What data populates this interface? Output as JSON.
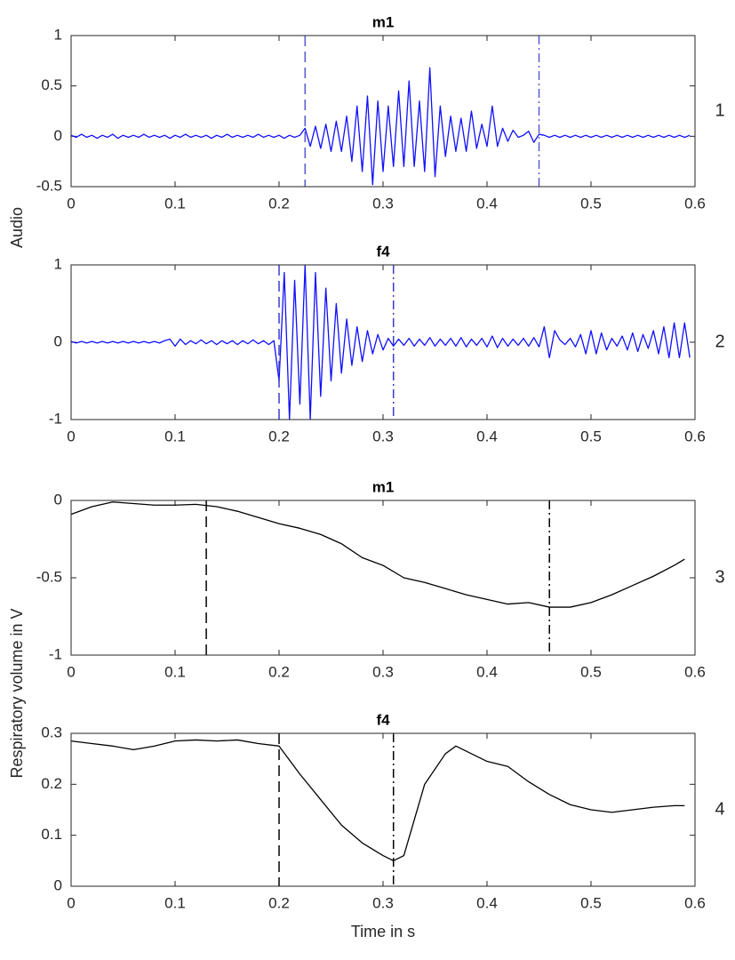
{
  "chart_data": [
    {
      "type": "line",
      "title": "m1",
      "ylabel": "Audio",
      "label": "1",
      "x": [
        0,
        0.005,
        0.01,
        0.015,
        0.02,
        0.025,
        0.03,
        0.035,
        0.04,
        0.045,
        0.05,
        0.055,
        0.06,
        0.065,
        0.07,
        0.075,
        0.08,
        0.085,
        0.09,
        0.095,
        0.1,
        0.105,
        0.11,
        0.115,
        0.12,
        0.125,
        0.13,
        0.135,
        0.14,
        0.145,
        0.15,
        0.155,
        0.16,
        0.165,
        0.17,
        0.175,
        0.18,
        0.185,
        0.19,
        0.195,
        0.2,
        0.205,
        0.21,
        0.215,
        0.22,
        0.225,
        0.23,
        0.235,
        0.24,
        0.245,
        0.25,
        0.255,
        0.26,
        0.265,
        0.27,
        0.275,
        0.28,
        0.285,
        0.29,
        0.295,
        0.3,
        0.305,
        0.31,
        0.315,
        0.32,
        0.325,
        0.33,
        0.335,
        0.34,
        0.345,
        0.35,
        0.355,
        0.36,
        0.365,
        0.37,
        0.375,
        0.38,
        0.385,
        0.39,
        0.395,
        0.4,
        0.405,
        0.41,
        0.415,
        0.42,
        0.425,
        0.43,
        0.435,
        0.44,
        0.445,
        0.45,
        0.455,
        0.46,
        0.465,
        0.47,
        0.475,
        0.48,
        0.485,
        0.49,
        0.495,
        0.5,
        0.505,
        0.51,
        0.515,
        0.52,
        0.525,
        0.53,
        0.535,
        0.54,
        0.545,
        0.55,
        0.555,
        0.56,
        0.565,
        0.57,
        0.575,
        0.58,
        0.585,
        0.59,
        0.595
      ],
      "values": [
        0.01,
        -0.01,
        0.02,
        -0.01,
        0.01,
        -0.02,
        0.01,
        -0.01,
        0.02,
        -0.02,
        0.01,
        -0.01,
        0.01,
        -0.01,
        0.02,
        -0.01,
        0.01,
        -0.01,
        0.01,
        -0.02,
        0.01,
        -0.01,
        0.02,
        -0.01,
        0.01,
        -0.01,
        0.01,
        -0.02,
        0.01,
        -0.01,
        0.02,
        -0.01,
        0.01,
        -0.01,
        0.01,
        -0.01,
        0.02,
        -0.01,
        0.01,
        -0.01,
        0.01,
        -0.02,
        0.01,
        -0.01,
        0.01,
        0.08,
        -0.1,
        0.1,
        -0.12,
        0.12,
        -0.15,
        0.15,
        -0.15,
        0.2,
        -0.25,
        0.3,
        -0.35,
        0.4,
        -0.48,
        0.35,
        -0.35,
        0.3,
        -0.3,
        0.45,
        -0.3,
        0.55,
        -0.3,
        0.35,
        -0.35,
        0.68,
        -0.4,
        0.3,
        -0.2,
        0.2,
        -0.15,
        0.18,
        -0.15,
        0.25,
        -0.12,
        0.12,
        -0.1,
        0.3,
        -0.1,
        0.08,
        -0.05,
        0.06,
        -0.01,
        0.01,
        0.05,
        -0.06,
        0.02,
        0.01,
        -0.01,
        0.01,
        -0.01,
        0.01,
        -0.01,
        0.01,
        -0.01,
        0.01,
        -0.01,
        0.01,
        -0.01,
        0.01,
        -0.01,
        0.01,
        -0.01,
        0.01,
        -0.01,
        0.01,
        -0.01,
        0.01,
        -0.01,
        0.01,
        -0.01,
        0.01,
        -0.01,
        0.01,
        -0.01,
        0.01
      ],
      "color": "#1010ff",
      "xlim": [
        0,
        0.6
      ],
      "xticks": [
        0,
        0.1,
        0.2,
        0.3,
        0.4,
        0.5,
        0.6
      ],
      "ylim": [
        -0.5,
        1
      ],
      "yticks": [
        -0.5,
        0,
        0.5,
        1
      ],
      "markers": [
        {
          "x": 0.225,
          "style": "dashed",
          "color": "#5a5ad6"
        },
        {
          "x": 0.45,
          "style": "dashdot",
          "color": "#5a5ad6"
        }
      ]
    },
    {
      "type": "line",
      "title": "f4",
      "label": "2",
      "x": [
        0,
        0.005,
        0.01,
        0.015,
        0.02,
        0.025,
        0.03,
        0.035,
        0.04,
        0.045,
        0.05,
        0.055,
        0.06,
        0.065,
        0.07,
        0.075,
        0.08,
        0.085,
        0.09,
        0.095,
        0.1,
        0.105,
        0.11,
        0.115,
        0.12,
        0.125,
        0.13,
        0.135,
        0.14,
        0.145,
        0.15,
        0.155,
        0.16,
        0.165,
        0.17,
        0.175,
        0.18,
        0.185,
        0.19,
        0.195,
        0.2,
        0.205,
        0.21,
        0.215,
        0.22,
        0.225,
        0.23,
        0.235,
        0.24,
        0.245,
        0.25,
        0.255,
        0.26,
        0.265,
        0.27,
        0.275,
        0.28,
        0.285,
        0.29,
        0.295,
        0.3,
        0.305,
        0.31,
        0.315,
        0.32,
        0.325,
        0.33,
        0.335,
        0.34,
        0.345,
        0.35,
        0.355,
        0.36,
        0.365,
        0.37,
        0.375,
        0.38,
        0.385,
        0.39,
        0.395,
        0.4,
        0.405,
        0.41,
        0.415,
        0.42,
        0.425,
        0.43,
        0.435,
        0.44,
        0.445,
        0.45,
        0.455,
        0.46,
        0.465,
        0.47,
        0.475,
        0.48,
        0.485,
        0.49,
        0.495,
        0.5,
        0.505,
        0.51,
        0.515,
        0.52,
        0.525,
        0.53,
        0.535,
        0.54,
        0.545,
        0.55,
        0.555,
        0.56,
        0.565,
        0.57,
        0.575,
        0.58,
        0.585,
        0.59,
        0.595
      ],
      "values": [
        0.01,
        -0.01,
        0.01,
        -0.01,
        0.01,
        -0.01,
        0.01,
        -0.01,
        0.01,
        -0.01,
        0.01,
        -0.01,
        0.01,
        -0.01,
        0.01,
        -0.01,
        0.01,
        -0.01,
        0.02,
        0.04,
        -0.05,
        0.04,
        -0.03,
        0.02,
        -0.02,
        0.03,
        -0.02,
        0.02,
        -0.03,
        0.02,
        -0.02,
        0.02,
        -0.03,
        0.02,
        -0.02,
        0.03,
        -0.02,
        0.02,
        -0.03,
        0.02,
        -0.5,
        0.9,
        -1,
        0.8,
        -0.8,
        1,
        -1,
        0.9,
        -0.7,
        0.7,
        -0.5,
        0.5,
        -0.4,
        0.3,
        -0.3,
        0.2,
        -0.25,
        0.15,
        -0.15,
        0.1,
        -0.1,
        0.05,
        -0.05,
        0.04,
        -0.04,
        0.05,
        -0.05,
        0.04,
        -0.04,
        0.06,
        -0.05,
        0.04,
        -0.04,
        0.05,
        -0.05,
        0.06,
        -0.06,
        0.04,
        -0.04,
        0.05,
        -0.06,
        0.08,
        -0.07,
        0.05,
        -0.05,
        0.04,
        -0.04,
        0.05,
        -0.05,
        0.06,
        -0.06,
        0.2,
        -0.2,
        0.15,
        0.03,
        -0.03,
        0.05,
        -0.06,
        0.1,
        -0.15,
        0.15,
        -0.15,
        0.12,
        -0.1,
        0.05,
        -0.05,
        0.08,
        -0.1,
        0.12,
        -0.12,
        0.1,
        -0.08,
        0.15,
        -0.15,
        0.2,
        -0.2,
        0.25,
        -0.2,
        0.25,
        -0.2
      ],
      "color": "#1010ff",
      "xlim": [
        0,
        0.6
      ],
      "xticks": [
        0,
        0.1,
        0.2,
        0.3,
        0.4,
        0.5,
        0.6
      ],
      "ylim": [
        -1,
        1
      ],
      "yticks": [
        -1,
        0,
        1
      ],
      "markers": [
        {
          "x": 0.2,
          "style": "dashed",
          "color": "#3a3ad0"
        },
        {
          "x": 0.31,
          "style": "dashdot",
          "color": "#3a3ad0"
        }
      ]
    },
    {
      "type": "line",
      "title": "m1",
      "ylabel": "Respiratory volume in V",
      "label": "3",
      "x": [
        0,
        0.02,
        0.04,
        0.06,
        0.08,
        0.1,
        0.12,
        0.14,
        0.16,
        0.18,
        0.2,
        0.22,
        0.24,
        0.26,
        0.28,
        0.3,
        0.32,
        0.34,
        0.36,
        0.38,
        0.4,
        0.42,
        0.44,
        0.46,
        0.48,
        0.5,
        0.52,
        0.54,
        0.56,
        0.58,
        0.59
      ],
      "values": [
        -0.09,
        -0.04,
        -0.01,
        -0.02,
        -0.03,
        -0.03,
        -0.025,
        -0.04,
        -0.07,
        -0.11,
        -0.15,
        -0.18,
        -0.22,
        -0.28,
        -0.37,
        -0.42,
        -0.5,
        -0.53,
        -0.57,
        -0.61,
        -0.64,
        -0.67,
        -0.66,
        -0.69,
        -0.69,
        -0.66,
        -0.61,
        -0.55,
        -0.49,
        -0.42,
        -0.38
      ],
      "color": "#000000",
      "xlim": [
        0,
        0.6
      ],
      "xticks": [
        0,
        0.1,
        0.2,
        0.3,
        0.4,
        0.5,
        0.6
      ],
      "ylim": [
        -1,
        0
      ],
      "yticks": [
        -1,
        -0.5,
        0
      ],
      "markers": [
        {
          "x": 0.13,
          "style": "dashed",
          "color": "#000000"
        },
        {
          "x": 0.46,
          "style": "dashdot",
          "color": "#000000"
        }
      ]
    },
    {
      "type": "line",
      "title": "f4",
      "xlabel": "Time in s",
      "label": "4",
      "x": [
        0,
        0.02,
        0.04,
        0.06,
        0.08,
        0.1,
        0.12,
        0.14,
        0.16,
        0.18,
        0.2,
        0.22,
        0.24,
        0.26,
        0.28,
        0.3,
        0.31,
        0.32,
        0.33,
        0.34,
        0.36,
        0.37,
        0.38,
        0.4,
        0.42,
        0.44,
        0.46,
        0.48,
        0.5,
        0.52,
        0.54,
        0.56,
        0.58,
        0.59
      ],
      "values": [
        0.285,
        0.28,
        0.275,
        0.268,
        0.275,
        0.285,
        0.287,
        0.285,
        0.287,
        0.28,
        0.275,
        0.22,
        0.17,
        0.12,
        0.085,
        0.06,
        0.05,
        0.06,
        0.13,
        0.2,
        0.26,
        0.275,
        0.265,
        0.245,
        0.235,
        0.205,
        0.18,
        0.16,
        0.15,
        0.145,
        0.15,
        0.155,
        0.158,
        0.158
      ],
      "color": "#000000",
      "xlim": [
        0,
        0.6
      ],
      "xticks": [
        0,
        0.1,
        0.2,
        0.3,
        0.4,
        0.5,
        0.6
      ],
      "ylim": [
        0,
        0.3
      ],
      "yticks": [
        0,
        0.1,
        0.2,
        0.3
      ],
      "markers": [
        {
          "x": 0.2,
          "style": "dashed",
          "color": "#000000"
        },
        {
          "x": 0.31,
          "style": "dashdot",
          "color": "#000000"
        }
      ]
    }
  ]
}
